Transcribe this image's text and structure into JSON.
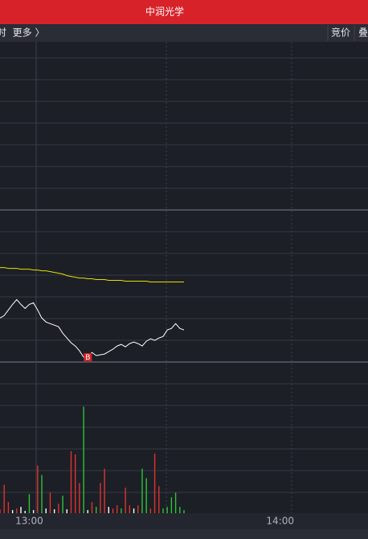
{
  "header": {
    "title": "中润光学"
  },
  "toolbar": {
    "left": "时  更多 〉",
    "buttons": [
      "竞价",
      "叠"
    ]
  },
  "chart_data": {
    "type": "line",
    "x": [
      "12:53",
      "12:54",
      "12:55",
      "12:56",
      "12:57",
      "12:58",
      "12:59",
      "13:00",
      "13:01",
      "13:02",
      "13:03",
      "13:04",
      "13:05",
      "13:06",
      "13:07",
      "13:08",
      "13:09",
      "13:10",
      "13:11",
      "13:12",
      "13:13",
      "13:14",
      "13:15",
      "13:16",
      "13:17",
      "13:18",
      "13:19",
      "13:20",
      "13:21",
      "13:22",
      "13:23",
      "13:24",
      "13:25",
      "13:26",
      "13:27",
      "13:28",
      "13:29",
      "13:30",
      "13:31",
      "13:32",
      "13:33",
      "13:34",
      "13:35",
      "13:36",
      "13:37"
    ],
    "series": [
      {
        "color": "#ffffff",
        "values": [
          55,
          58,
          65,
          72,
          78,
          72,
          67,
          72,
          74,
          65,
          55,
          50,
          48,
          46,
          44,
          36,
          30,
          24,
          20,
          14,
          6,
          7,
          12,
          8,
          9,
          10,
          13,
          16,
          20,
          22,
          19,
          23,
          25,
          23,
          20,
          26,
          29,
          27,
          30,
          32,
          40,
          42,
          48,
          42,
          40
        ]
      },
      {
        "color": "#e8e000",
        "values": [
          118,
          118,
          117,
          117,
          117,
          116,
          116,
          116,
          115,
          115,
          114,
          114,
          113,
          112,
          111,
          110,
          108,
          107,
          106,
          105,
          105,
          104,
          104,
          103,
          103,
          103,
          102,
          102,
          102,
          102,
          101,
          101,
          101,
          101,
          101,
          101,
          100,
          100,
          100,
          100,
          100,
          100,
          100,
          100,
          100
        ]
      }
    ],
    "ylim": [
      0,
      190
    ],
    "xlim": [
      "12:53",
      "14:21"
    ],
    "xticks": [
      "13:00",
      "14:00"
    ],
    "volume": {
      "type": "bar",
      "ylim": [
        0,
        190
      ],
      "values": [
        5,
        36,
        14,
        4,
        6,
        8,
        3,
        24,
        4,
        60,
        48,
        6,
        26,
        5,
        12,
        22,
        5,
        78,
        74,
        38,
        134,
        4,
        14,
        8,
        38,
        56,
        8,
        6,
        10,
        6,
        32,
        10,
        6,
        10,
        56,
        44,
        6,
        75,
        34,
        6,
        8,
        20,
        26,
        8,
        4
      ],
      "colors": [
        "#e0322f",
        "#e0322f",
        "#e0322f",
        "#ffffff",
        "#e0322f",
        "#ffffff",
        "#ffffff",
        "#2fc23a",
        "#ffffff",
        "#e0322f",
        "#2fc23a",
        "#ffffff",
        "#e0322f",
        "#ffffff",
        "#e0322f",
        "#2fc23a",
        "#ffffff",
        "#e0322f",
        "#e0322f",
        "#e0322f",
        "#2fc23a",
        "#ffffff",
        "#e0322f",
        "#2fc23a",
        "#e0322f",
        "#e0322f",
        "#ffffff",
        "#e0322f",
        "#e0322f",
        "#2fc23a",
        "#e0322f",
        "#e0322f",
        "#ffffff",
        "#e0322f",
        "#2fc23a",
        "#2fc23a",
        "#e0322f",
        "#e0322f",
        "#e0322f",
        "#2fc23a",
        "#2fc23a",
        "#2fc23a",
        "#2fc23a",
        "#2fc23a",
        "#2fc23a"
      ]
    },
    "annotations": [
      {
        "text": "B",
        "x": "13:14"
      }
    ]
  }
}
